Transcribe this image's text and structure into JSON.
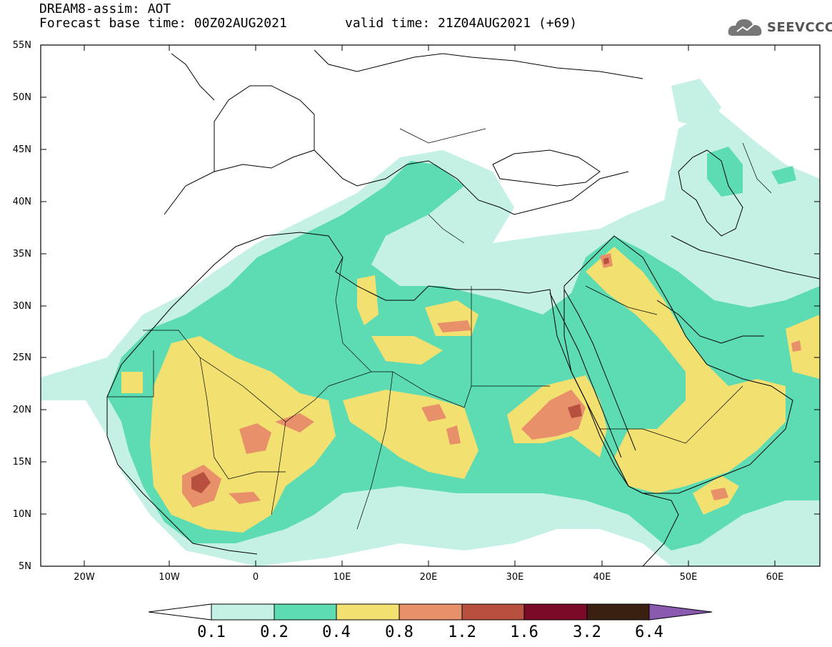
{
  "header": {
    "title_line1": "DREAM8-assim: AOT",
    "title_line2": "Forecast base time: 00Z02AUG2021",
    "valid_time": "valid time: 21Z04AUG2021 (+69)"
  },
  "logo": {
    "text": "SEEVCCC",
    "icon": "cloud-logo-icon"
  },
  "map": {
    "lon_range": [
      -25,
      65
    ],
    "lat_range": [
      5,
      55
    ],
    "lat_labels": [
      "55N",
      "50N",
      "45N",
      "40N",
      "35N",
      "30N",
      "25N",
      "20N",
      "15N",
      "10N",
      "5N"
    ],
    "lon_labels": [
      "20W",
      "10W",
      "0",
      "10E",
      "20E",
      "30E",
      "40E",
      "50E",
      "60E"
    ]
  },
  "colorbar": {
    "levels": [
      "0.1",
      "0.2",
      "0.4",
      "0.8",
      "1.2",
      "1.6",
      "3.2",
      "6.4"
    ],
    "colors": [
      "#c5f0e6",
      "#5ddcb4",
      "#f2e070",
      "#e8906a",
      "#b85040",
      "#7a0a28",
      "#3a2010",
      "#8a5ab0"
    ]
  }
}
